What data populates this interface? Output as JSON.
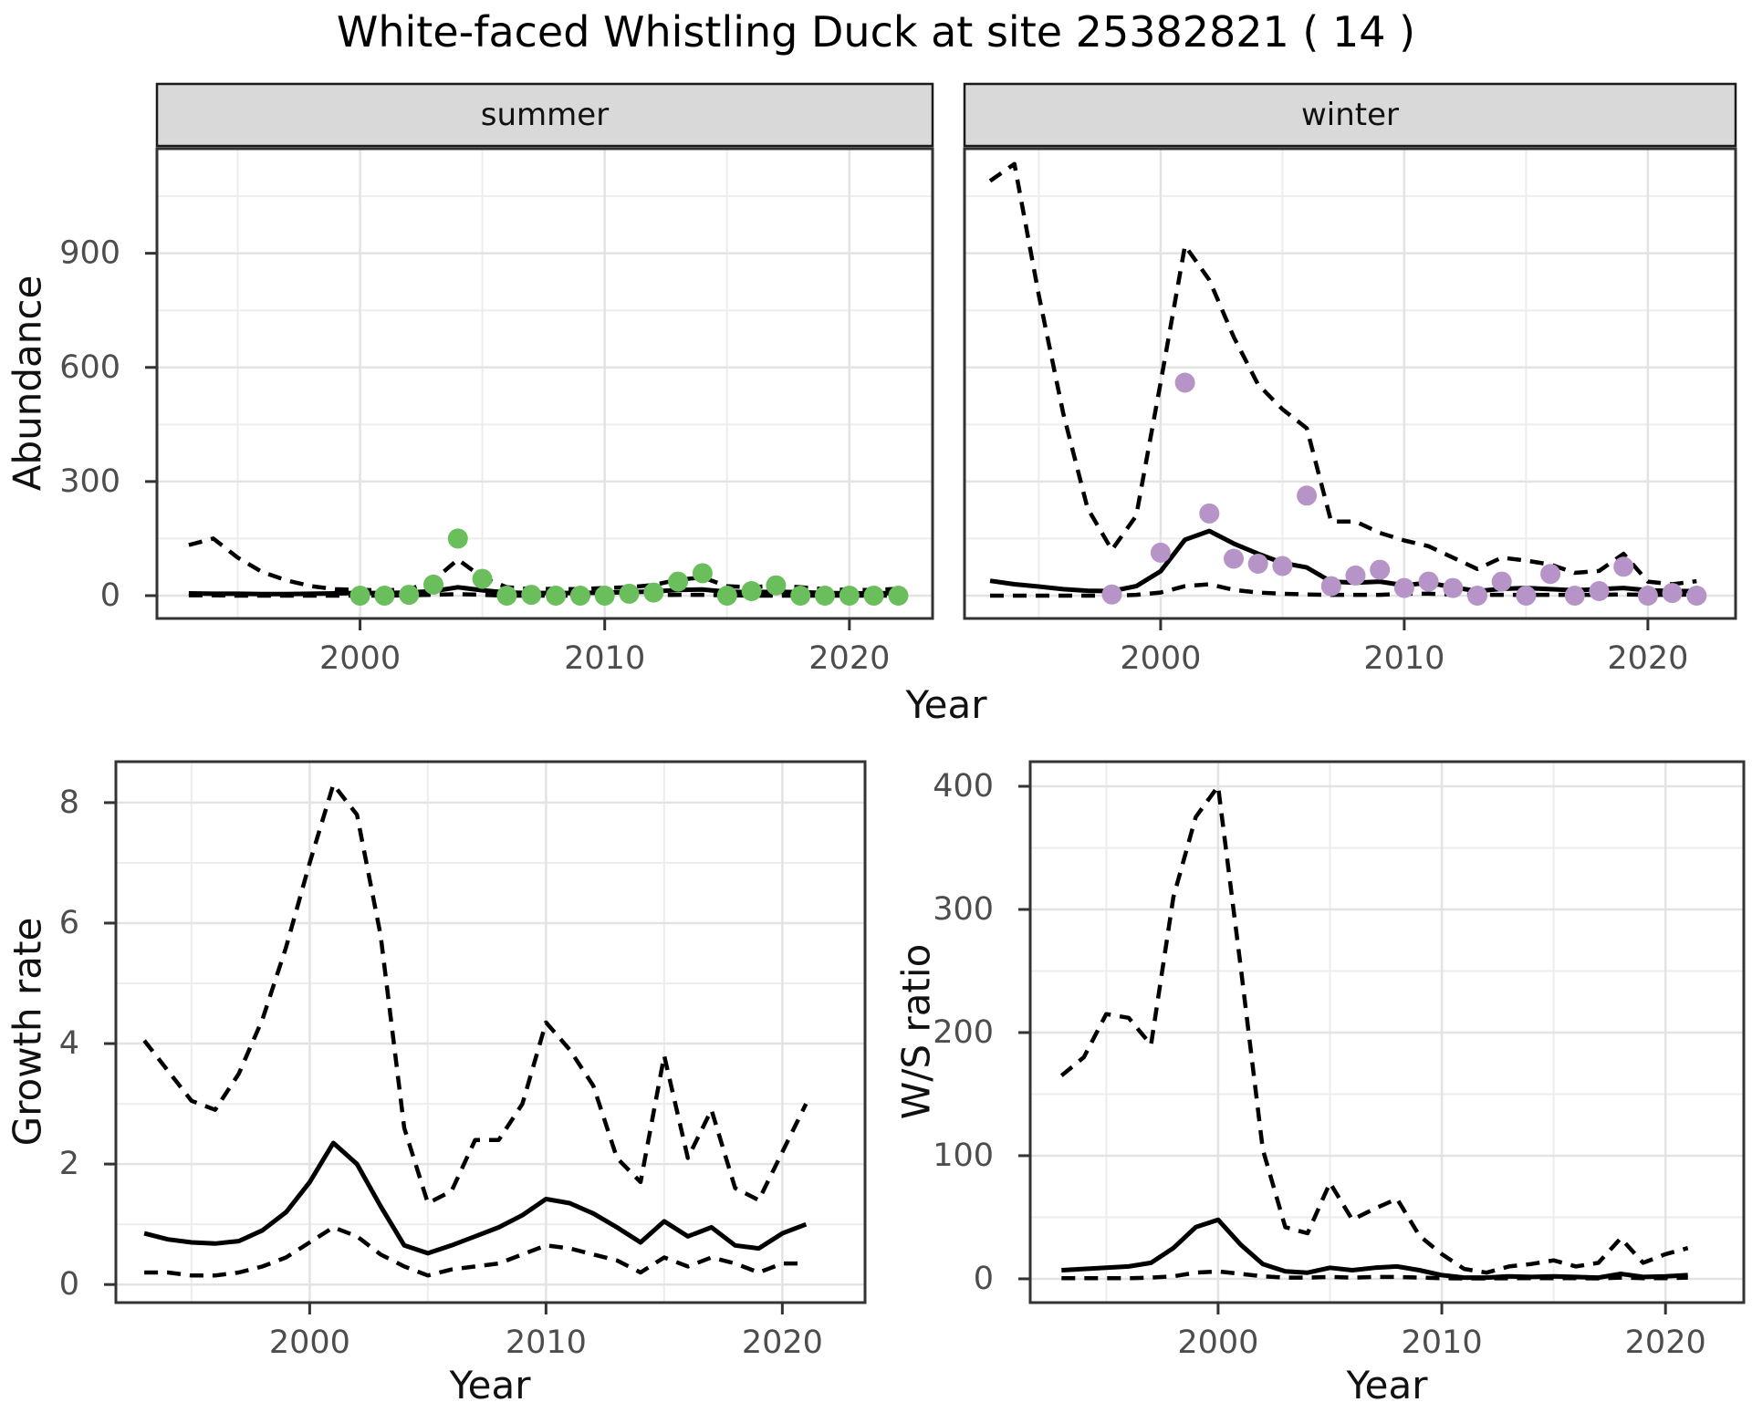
{
  "page": {
    "title": "White-faced Whistling Duck at site 25382821 ( 14 )"
  },
  "colors": {
    "line": "#000000",
    "summer_points": "#6BBE5C",
    "winter_points": "#B794C8",
    "strip_fill": "#D9D9D9",
    "strip_border": "#1A1A1A",
    "panel_border": "#333333",
    "grid_major": "#E3E3E3",
    "grid_minor": "#EDEDED",
    "tick_mark": "#333333",
    "tick_text": "#4D4D4D"
  },
  "chart_data": [
    {
      "id": "abundance-summer",
      "type": "line+scatter",
      "facet": "summer",
      "ylabel": "Abundance",
      "xlabel": "Year",
      "x_major": [
        2000,
        2010,
        2020
      ],
      "x_minor": [
        1995,
        2005,
        2015
      ],
      "y_major": [
        0,
        300,
        600,
        900
      ],
      "y_minor": [
        150,
        450,
        750,
        1050
      ],
      "xlim": [
        1991.7,
        2023.4
      ],
      "ylim": [
        -60,
        1175
      ],
      "grid": true,
      "legend": "none",
      "years": [
        1993,
        1994,
        1995,
        1996,
        1997,
        1998,
        1999,
        2000,
        2001,
        2002,
        2003,
        2004,
        2005,
        2006,
        2007,
        2008,
        2009,
        2010,
        2011,
        2012,
        2013,
        2014,
        2015,
        2016,
        2017,
        2018,
        2019,
        2020,
        2021,
        2022
      ],
      "series": [
        {
          "name": "median",
          "style": "solid",
          "values": [
            6,
            5,
            5,
            4,
            4,
            5,
            6,
            7,
            7,
            8,
            12,
            22,
            14,
            8,
            7,
            7,
            7,
            8,
            9,
            11,
            15,
            16,
            10,
            9,
            10,
            9,
            7,
            6,
            6,
            7
          ]
        },
        {
          "name": "lower_ci",
          "style": "dashed",
          "values": [
            1,
            1,
            0,
            0,
            0,
            0,
            0,
            0,
            0,
            1,
            2,
            4,
            2,
            0,
            0,
            0,
            0,
            0,
            0,
            1,
            2,
            2,
            1,
            0,
            0,
            0,
            0,
            0,
            0,
            0
          ]
        },
        {
          "name": "upper_ci",
          "style": "dashed",
          "values": [
            133,
            150,
            100,
            62,
            40,
            25,
            17,
            15,
            14,
            16,
            40,
            95,
            48,
            22,
            17,
            18,
            17,
            20,
            22,
            28,
            42,
            48,
            25,
            22,
            26,
            22,
            17,
            15,
            15,
            18
          ]
        }
      ],
      "points": {
        "name": "observed-counts",
        "color": "#6BBE5C",
        "years": [
          2000,
          2001,
          2002,
          2003,
          2004,
          2005,
          2006,
          2007,
          2008,
          2009,
          2010,
          2011,
          2012,
          2013,
          2014,
          2015,
          2016,
          2017,
          2018,
          2019,
          2020,
          2021,
          2022
        ],
        "values": [
          0,
          0,
          2,
          29,
          150,
          44,
          0,
          2,
          0,
          0,
          0,
          5,
          8,
          37,
          59,
          0,
          12,
          27,
          0,
          0,
          0,
          0,
          0
        ]
      }
    },
    {
      "id": "abundance-winter",
      "type": "line+scatter",
      "facet": "winter",
      "ylabel": "Abundance",
      "xlabel": "Year",
      "x_major": [
        2000,
        2010,
        2020
      ],
      "x_minor": [
        1995,
        2005,
        2015
      ],
      "y_major": [
        0,
        300,
        600,
        900
      ],
      "y_minor": [
        150,
        450,
        750,
        1050
      ],
      "xlim": [
        1991.95,
        2023.6
      ],
      "ylim": [
        -60,
        1175
      ],
      "grid": true,
      "legend": "none",
      "years": [
        1993,
        1994,
        1995,
        1996,
        1997,
        1998,
        1999,
        2000,
        2001,
        2002,
        2003,
        2004,
        2005,
        2006,
        2007,
        2008,
        2009,
        2010,
        2011,
        2012,
        2013,
        2014,
        2015,
        2016,
        2017,
        2018,
        2019,
        2020,
        2021,
        2022
      ],
      "series": [
        {
          "name": "median",
          "style": "solid",
          "values": [
            39,
            30,
            24,
            17,
            13,
            12,
            25,
            64,
            147,
            170,
            137,
            110,
            86,
            74,
            37,
            34,
            37,
            27,
            34,
            22,
            12,
            18,
            20,
            17,
            14,
            17,
            20,
            14,
            12,
            12
          ]
        },
        {
          "name": "lower_ci",
          "style": "dashed",
          "values": [
            0,
            0,
            0,
            0,
            0,
            0,
            2,
            8,
            25,
            30,
            15,
            8,
            5,
            3,
            2,
            2,
            2,
            5,
            5,
            3,
            2,
            2,
            2,
            2,
            2,
            2,
            3,
            2,
            2,
            3
          ]
        },
        {
          "name": "upper_ci",
          "style": "dashed",
          "values": [
            1090,
            1135,
            790,
            480,
            230,
            120,
            210,
            560,
            920,
            830,
            680,
            555,
            490,
            440,
            195,
            195,
            165,
            145,
            130,
            100,
            70,
            100,
            92,
            82,
            60,
            65,
            110,
            37,
            30,
            38
          ]
        }
      ],
      "points": {
        "name": "observed-counts",
        "color": "#B794C8",
        "years": [
          1998,
          2000,
          2001,
          2002,
          2003,
          2004,
          2005,
          2006,
          2007,
          2008,
          2009,
          2010,
          2011,
          2012,
          2013,
          2014,
          2015,
          2016,
          2017,
          2018,
          2019,
          2020,
          2021,
          2022
        ],
        "values": [
          3,
          113,
          560,
          216,
          97,
          84,
          78,
          263,
          25,
          53,
          68,
          20,
          37,
          20,
          0,
          37,
          0,
          57,
          0,
          12,
          76,
          0,
          7,
          0
        ]
      }
    },
    {
      "id": "growth-rate",
      "type": "line",
      "facet": "",
      "ylabel": "Growth rate",
      "xlabel": "Year",
      "x_major": [
        2000,
        2010,
        2020
      ],
      "x_minor": [
        1995,
        2005,
        2015
      ],
      "y_major": [
        0,
        2,
        4,
        6,
        8
      ],
      "y_minor": [
        1,
        3,
        5,
        7
      ],
      "xlim": [
        1991.8,
        2023.5
      ],
      "ylim": [
        -0.3,
        8.68
      ],
      "grid": true,
      "legend": "none",
      "years": [
        1993,
        1994,
        1995,
        1996,
        1997,
        1998,
        1999,
        2000,
        2001,
        2002,
        2003,
        2004,
        2005,
        2006,
        2007,
        2008,
        2009,
        2010,
        2011,
        2012,
        2013,
        2014,
        2015,
        2016,
        2017,
        2018,
        2019,
        2020,
        2021
      ],
      "series": [
        {
          "name": "median",
          "style": "solid",
          "values": [
            0.85,
            0.75,
            0.7,
            0.68,
            0.72,
            0.9,
            1.2,
            1.7,
            2.35,
            2.0,
            1.3,
            0.65,
            0.52,
            0.65,
            0.8,
            0.95,
            1.15,
            1.42,
            1.35,
            1.18,
            0.95,
            0.7,
            1.05,
            0.8,
            0.95,
            0.65,
            0.6,
            0.85,
            1.0
          ]
        },
        {
          "name": "lower_ci",
          "style": "dashed",
          "values": [
            0.2,
            0.2,
            0.15,
            0.15,
            0.2,
            0.3,
            0.45,
            0.7,
            0.95,
            0.8,
            0.5,
            0.3,
            0.15,
            0.25,
            0.3,
            0.35,
            0.5,
            0.65,
            0.6,
            0.5,
            0.4,
            0.2,
            0.45,
            0.3,
            0.45,
            0.35,
            0.2,
            0.35,
            0.35
          ]
        },
        {
          "name": "upper_ci",
          "style": "dashed",
          "values": [
            4.05,
            3.55,
            3.05,
            2.9,
            3.5,
            4.4,
            5.6,
            7.0,
            8.3,
            7.8,
            5.8,
            2.6,
            1.35,
            1.55,
            2.4,
            2.4,
            3.0,
            4.35,
            3.9,
            3.3,
            2.1,
            1.7,
            3.8,
            2.1,
            2.9,
            1.6,
            1.4,
            2.2,
            3.0
          ]
        }
      ],
      "points": null
    },
    {
      "id": "ws-ratio",
      "type": "line",
      "facet": "",
      "ylabel": "W/S ratio",
      "xlabel": "Year",
      "x_major": [
        2000,
        2010,
        2020
      ],
      "x_minor": [
        1995,
        2005,
        2015
      ],
      "y_major": [
        0,
        100,
        200,
        300,
        400
      ],
      "y_minor": [
        50,
        150,
        250,
        350
      ],
      "xlim": [
        1991.6,
        2023.5
      ],
      "ylim": [
        -19.3,
        420
      ],
      "grid": true,
      "legend": "none",
      "years": [
        1993,
        1994,
        1995,
        1996,
        1997,
        1998,
        1999,
        2000,
        2001,
        2002,
        2003,
        2004,
        2005,
        2006,
        2007,
        2008,
        2009,
        2010,
        2011,
        2012,
        2013,
        2014,
        2015,
        2016,
        2017,
        2018,
        2019,
        2020,
        2021
      ],
      "series": [
        {
          "name": "median",
          "style": "solid",
          "values": [
            7,
            8,
            9,
            10,
            13,
            25,
            42,
            48,
            28,
            12,
            6,
            5,
            9,
            7,
            9,
            10,
            7,
            3,
            1,
            1,
            2,
            1.5,
            2,
            1.5,
            1,
            4,
            1.5,
            2,
            3
          ]
        },
        {
          "name": "lower_ci",
          "style": "dashed",
          "values": [
            0.5,
            0.5,
            0.5,
            0.5,
            1,
            2,
            5,
            6,
            4,
            2,
            1,
            1,
            1.5,
            1,
            1.5,
            1.5,
            1,
            0.5,
            0.3,
            0.3,
            0.5,
            0.5,
            0.5,
            0.5,
            0.3,
            1,
            0.5,
            0.5,
            1
          ]
        },
        {
          "name": "upper_ci",
          "style": "dashed",
          "values": [
            165,
            180,
            215,
            212,
            190,
            310,
            375,
            400,
            255,
            105,
            42,
            37,
            78,
            48,
            57,
            65,
            35,
            20,
            8,
            5,
            10,
            12,
            15,
            10,
            13,
            33,
            13,
            20,
            25
          ]
        }
      ],
      "points": null
    }
  ]
}
